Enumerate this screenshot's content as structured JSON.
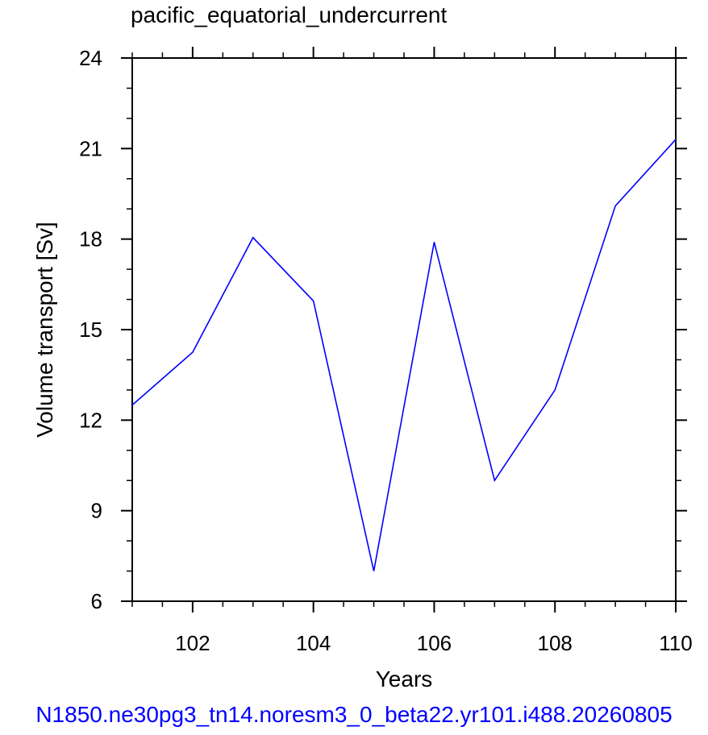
{
  "chart_data": {
    "type": "line",
    "title": "pacific_equatorial_undercurrent",
    "xlabel": "Years",
    "ylabel": "Volume transport [Sv]",
    "xlim": [
      101,
      110
    ],
    "ylim": [
      6,
      24
    ],
    "x_ticks": [
      102,
      104,
      106,
      108,
      110
    ],
    "y_ticks": [
      6,
      9,
      12,
      15,
      18,
      21,
      24
    ],
    "x_tick_labels": [
      "102",
      "104",
      "106",
      "108",
      "110"
    ],
    "y_tick_labels": [
      "6",
      "9",
      "12",
      "15",
      "18",
      "21",
      "24"
    ],
    "grid": false,
    "series": [
      {
        "color": "#0000ff",
        "x": [
          101,
          102,
          103,
          104,
          105,
          106,
          107,
          108,
          109,
          110
        ],
        "values": [
          12.5,
          14.25,
          18.05,
          15.95,
          7.0,
          17.9,
          10.0,
          13.0,
          19.1,
          21.3
        ]
      }
    ]
  },
  "caption": {
    "text": "N1850.ne30pg3_tn14.noresm3_0_beta22.yr101.i488.20260805",
    "color": "#0000ff"
  }
}
